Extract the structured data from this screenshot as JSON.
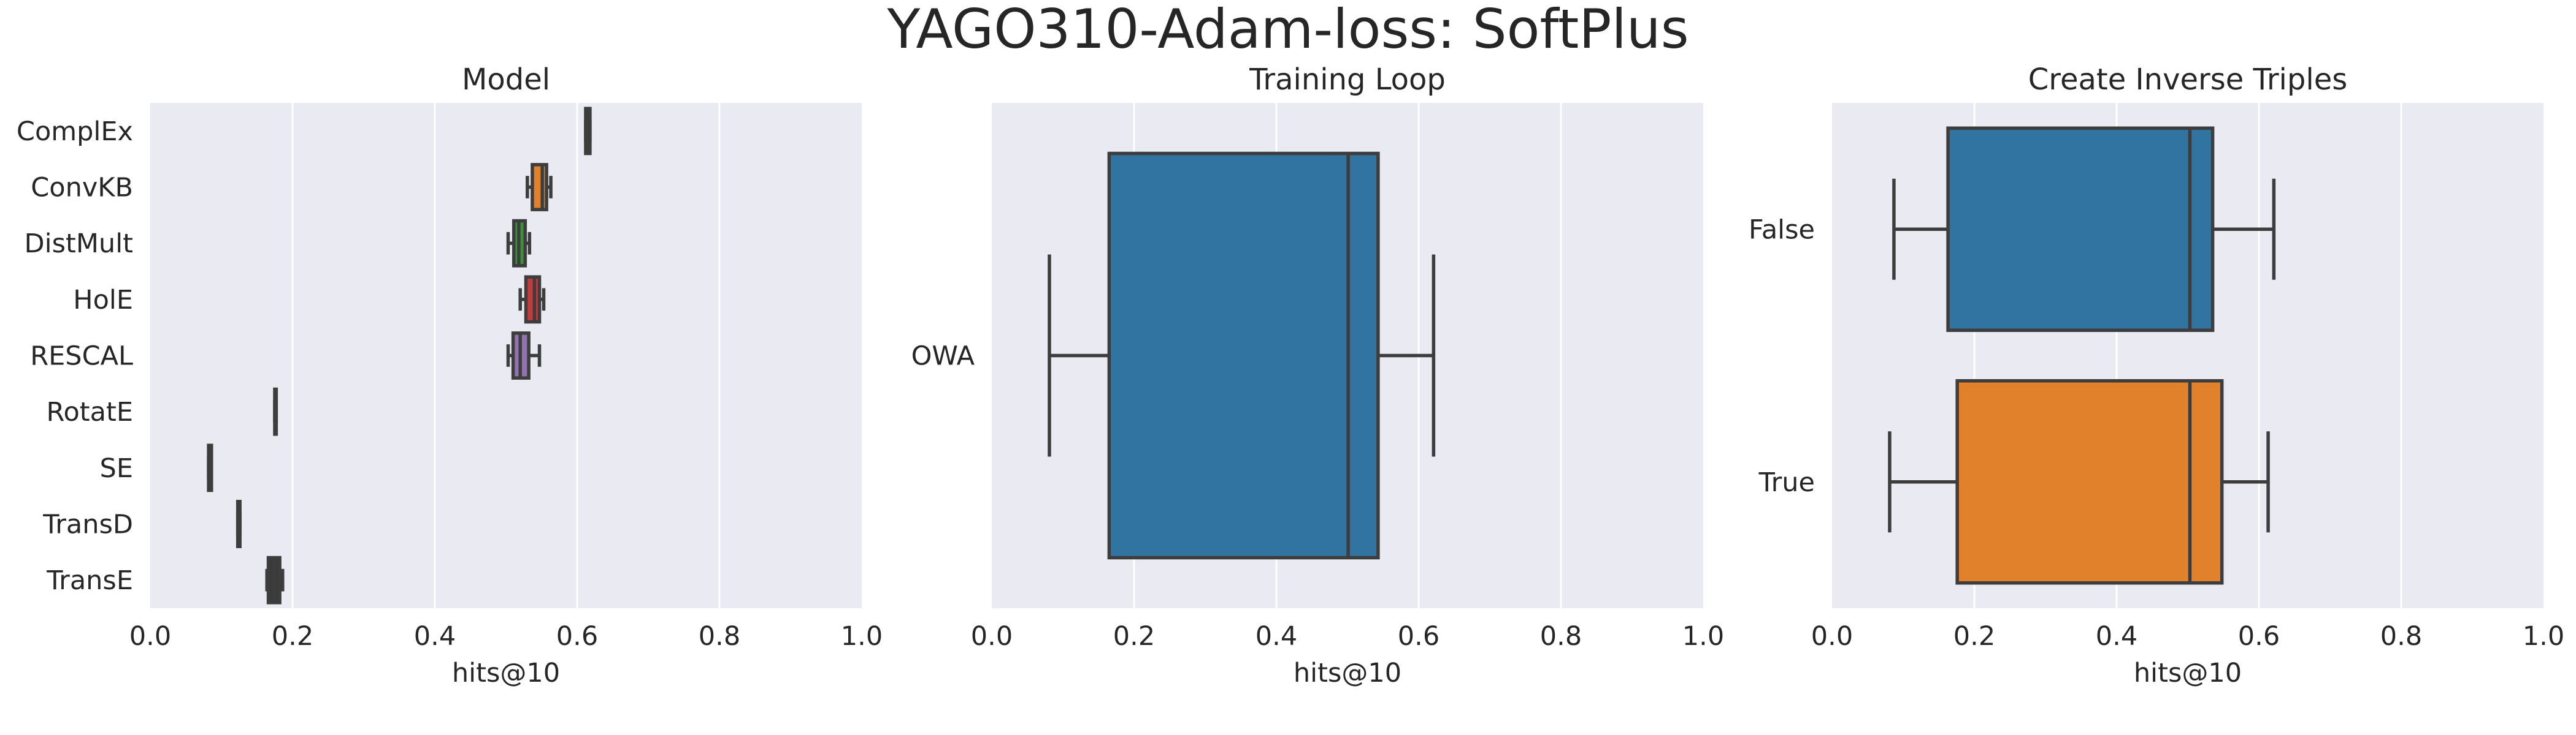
{
  "figure": {
    "title": "YAGO310-Adam-loss: SoftPlus"
  },
  "chart_data": [
    {
      "type": "box",
      "orientation": "horizontal",
      "title": "Model",
      "xlabel": "hits@10",
      "xlim": [
        0.0,
        1.0
      ],
      "xticks": [
        "0.0",
        "0.2",
        "0.4",
        "0.6",
        "0.8",
        "1.0"
      ],
      "grid": "x",
      "categories": [
        "ComplEx",
        "ConvKB",
        "DistMult",
        "HolE",
        "RESCAL",
        "RotatE",
        "SE",
        "TransD",
        "TransE"
      ],
      "boxes": [
        {
          "min": 0.612,
          "q1": 0.612,
          "median": 0.615,
          "q3": 0.618,
          "max": 0.618,
          "color": "#3a3a3a"
        },
        {
          "min": 0.53,
          "q1": 0.537,
          "median": 0.551,
          "q3": 0.557,
          "max": 0.563,
          "color": "#e1812c"
        },
        {
          "min": 0.503,
          "q1": 0.511,
          "median": 0.518,
          "q3": 0.527,
          "max": 0.533,
          "color": "#3a923a"
        },
        {
          "min": 0.52,
          "q1": 0.528,
          "median": 0.54,
          "q3": 0.547,
          "max": 0.553,
          "color": "#c03d3e"
        },
        {
          "min": 0.503,
          "q1": 0.51,
          "median": 0.52,
          "q3": 0.532,
          "max": 0.547,
          "color": "#9372b2"
        },
        {
          "min": 0.175,
          "q1": 0.175,
          "median": 0.176,
          "q3": 0.177,
          "max": 0.177,
          "color": "#3a3a3a"
        },
        {
          "min": 0.082,
          "q1": 0.082,
          "median": 0.084,
          "q3": 0.086,
          "max": 0.086,
          "color": "#3a3a3a"
        },
        {
          "min": 0.123,
          "q1": 0.123,
          "median": 0.125,
          "q3": 0.126,
          "max": 0.126,
          "color": "#3a3a3a"
        },
        {
          "min": 0.164,
          "q1": 0.166,
          "median": 0.175,
          "q3": 0.182,
          "max": 0.186,
          "color": "#3a3a3a"
        }
      ]
    },
    {
      "type": "box",
      "orientation": "horizontal",
      "title": "Training Loop",
      "xlabel": "hits@10",
      "xlim": [
        0.0,
        1.0
      ],
      "xticks": [
        "0.0",
        "0.2",
        "0.4",
        "0.6",
        "0.8",
        "1.0"
      ],
      "grid": "x",
      "categories": [
        "OWA"
      ],
      "boxes": [
        {
          "min": 0.081,
          "q1": 0.165,
          "median": 0.501,
          "q3": 0.543,
          "max": 0.621,
          "color": "#3274a1"
        }
      ]
    },
    {
      "type": "box",
      "orientation": "horizontal",
      "title": "Create Inverse Triples",
      "xlabel": "hits@10",
      "xlim": [
        0.0,
        1.0
      ],
      "xticks": [
        "0.0",
        "0.2",
        "0.4",
        "0.6",
        "0.8",
        "1.0"
      ],
      "grid": "x",
      "categories": [
        "False",
        "True"
      ],
      "boxes": [
        {
          "min": 0.087,
          "q1": 0.163,
          "median": 0.503,
          "q3": 0.535,
          "max": 0.621,
          "color": "#3274a1"
        },
        {
          "min": 0.081,
          "q1": 0.176,
          "median": 0.503,
          "q3": 0.548,
          "max": 0.613,
          "color": "#e1812c"
        }
      ]
    }
  ]
}
